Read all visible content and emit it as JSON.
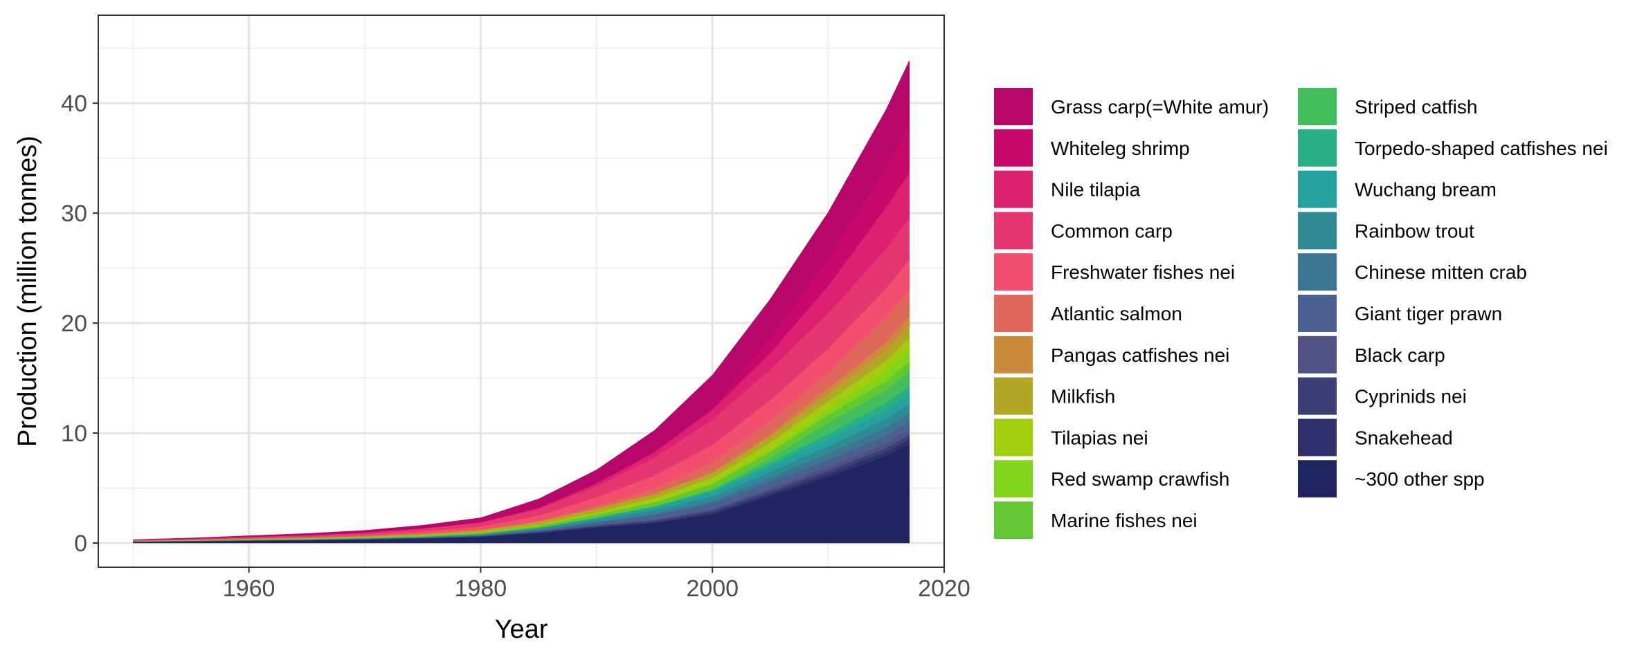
{
  "chart_data": {
    "type": "area",
    "stacked": true,
    "title": "",
    "xlabel": "Year",
    "ylabel": "Production (million tonnes)",
    "xlim": [
      1947,
      2020
    ],
    "ylim": [
      -2.2,
      48
    ],
    "xticks": [
      1960,
      1980,
      2000,
      2020
    ],
    "yticks": [
      0,
      10,
      20,
      30,
      40
    ],
    "grid": true,
    "legend_position": "right",
    "x": [
      1950,
      1955,
      1960,
      1965,
      1970,
      1975,
      1980,
      1985,
      1990,
      1995,
      2000,
      2005,
      2010,
      2015,
      2017
    ],
    "series": [
      {
        "name": "~300 other spp",
        "color": "#1f2560",
        "values": [
          0.1,
          0.15,
          0.2,
          0.25,
          0.3,
          0.4,
          0.55,
          0.9,
          1.4,
          1.8,
          2.6,
          4.3,
          6.0,
          7.9,
          9.0
        ]
      },
      {
        "name": "Snakehead",
        "color": "#2e2f6b",
        "values": [
          0.01,
          0.01,
          0.01,
          0.01,
          0.02,
          0.02,
          0.03,
          0.05,
          0.08,
          0.1,
          0.15,
          0.2,
          0.3,
          0.4,
          0.45
        ]
      },
      {
        "name": "Cyprinids nei",
        "color": "#3b3f78",
        "values": [
          0.02,
          0.02,
          0.03,
          0.03,
          0.04,
          0.05,
          0.06,
          0.08,
          0.1,
          0.15,
          0.2,
          0.25,
          0.3,
          0.35,
          0.4
        ]
      },
      {
        "name": "Black carp",
        "color": "#515284",
        "values": [
          0.01,
          0.01,
          0.01,
          0.01,
          0.01,
          0.01,
          0.02,
          0.03,
          0.05,
          0.1,
          0.15,
          0.25,
          0.35,
          0.45,
          0.5
        ]
      },
      {
        "name": "Giant tiger prawn",
        "color": "#4a6090",
        "values": [
          0.0,
          0.0,
          0.0,
          0.0,
          0.01,
          0.01,
          0.02,
          0.1,
          0.25,
          0.4,
          0.5,
          0.55,
          0.6,
          0.65,
          0.7
        ]
      },
      {
        "name": "Chinese mitten crab",
        "color": "#3b7592",
        "values": [
          0.0,
          0.0,
          0.0,
          0.0,
          0.0,
          0.0,
          0.0,
          0.01,
          0.02,
          0.1,
          0.2,
          0.4,
          0.6,
          0.75,
          0.8
        ]
      },
      {
        "name": "Rainbow trout",
        "color": "#2f8a96",
        "values": [
          0.01,
          0.02,
          0.03,
          0.04,
          0.06,
          0.09,
          0.12,
          0.16,
          0.25,
          0.35,
          0.45,
          0.55,
          0.65,
          0.8,
          0.85
        ]
      },
      {
        "name": "Wuchang bream",
        "color": "#24a19f",
        "values": [
          0.0,
          0.0,
          0.0,
          0.0,
          0.0,
          0.01,
          0.02,
          0.05,
          0.12,
          0.25,
          0.4,
          0.5,
          0.65,
          0.75,
          0.8
        ]
      },
      {
        "name": "Torpedo-shaped catfishes nei",
        "color": "#28af85",
        "values": [
          0.0,
          0.0,
          0.0,
          0.0,
          0.0,
          0.0,
          0.01,
          0.02,
          0.04,
          0.08,
          0.15,
          0.3,
          0.5,
          0.7,
          0.8
        ]
      },
      {
        "name": "Striped catfish",
        "color": "#43be5d",
        "values": [
          0.0,
          0.0,
          0.0,
          0.0,
          0.0,
          0.0,
          0.0,
          0.01,
          0.02,
          0.03,
          0.08,
          0.4,
          1.0,
          1.2,
          1.3
        ]
      },
      {
        "name": "Marine fishes nei",
        "color": "#62c832",
        "values": [
          0.02,
          0.03,
          0.04,
          0.05,
          0.06,
          0.08,
          0.1,
          0.15,
          0.25,
          0.35,
          0.5,
          0.6,
          0.7,
          0.8,
          0.9
        ]
      },
      {
        "name": "Red swamp crawfish",
        "color": "#80d51a",
        "values": [
          0.0,
          0.0,
          0.0,
          0.0,
          0.0,
          0.0,
          0.01,
          0.01,
          0.02,
          0.02,
          0.05,
          0.15,
          0.4,
          0.8,
          1.1
        ]
      },
      {
        "name": "Tilapias nei",
        "color": "#a0cd0e",
        "values": [
          0.0,
          0.0,
          0.01,
          0.01,
          0.02,
          0.03,
          0.05,
          0.1,
          0.2,
          0.35,
          0.5,
          0.7,
          0.85,
          1.0,
          1.1
        ]
      },
      {
        "name": "Milkfish",
        "color": "#b3a825",
        "values": [
          0.05,
          0.06,
          0.08,
          0.1,
          0.12,
          0.15,
          0.2,
          0.28,
          0.35,
          0.4,
          0.45,
          0.55,
          0.7,
          1.0,
          1.1
        ]
      },
      {
        "name": "Pangas catfishes nei",
        "color": "#cc8a3c",
        "values": [
          0.0,
          0.0,
          0.0,
          0.0,
          0.0,
          0.0,
          0.0,
          0.0,
          0.01,
          0.02,
          0.05,
          0.2,
          0.5,
          0.7,
          0.8
        ]
      },
      {
        "name": "Atlantic salmon",
        "color": "#e0685a",
        "values": [
          0.0,
          0.0,
          0.0,
          0.0,
          0.0,
          0.01,
          0.01,
          0.05,
          0.2,
          0.45,
          0.9,
          1.2,
          1.4,
          2.3,
          2.4
        ]
      },
      {
        "name": "Freshwater fishes nei",
        "color": "#f24e6e",
        "values": [
          0.02,
          0.03,
          0.05,
          0.08,
          0.12,
          0.2,
          0.3,
          0.5,
          0.8,
          1.2,
          1.6,
          1.9,
          2.2,
          2.6,
          2.8
        ]
      },
      {
        "name": "Common carp",
        "color": "#e53670",
        "values": [
          0.05,
          0.07,
          0.1,
          0.13,
          0.17,
          0.25,
          0.35,
          0.6,
          1.0,
          1.6,
          2.3,
          2.8,
          3.2,
          3.6,
          3.8
        ]
      },
      {
        "name": "Nile tilapia",
        "color": "#dd2170",
        "values": [
          0.0,
          0.0,
          0.01,
          0.01,
          0.02,
          0.03,
          0.05,
          0.1,
          0.25,
          0.5,
          0.9,
          1.5,
          2.5,
          3.8,
          4.1
        ]
      },
      {
        "name": "Whiteleg shrimp",
        "color": "#c8096b",
        "values": [
          0.0,
          0.0,
          0.0,
          0.0,
          0.0,
          0.0,
          0.0,
          0.01,
          0.05,
          0.1,
          0.15,
          1.4,
          2.5,
          3.5,
          4.4
        ]
      },
      {
        "name": "Grass carp(=White amur)",
        "color": "#b8076b",
        "values": [
          0.02,
          0.06,
          0.1,
          0.15,
          0.2,
          0.28,
          0.4,
          0.8,
          1.2,
          1.9,
          3.0,
          3.5,
          4.2,
          5.4,
          5.8
        ]
      }
    ]
  }
}
